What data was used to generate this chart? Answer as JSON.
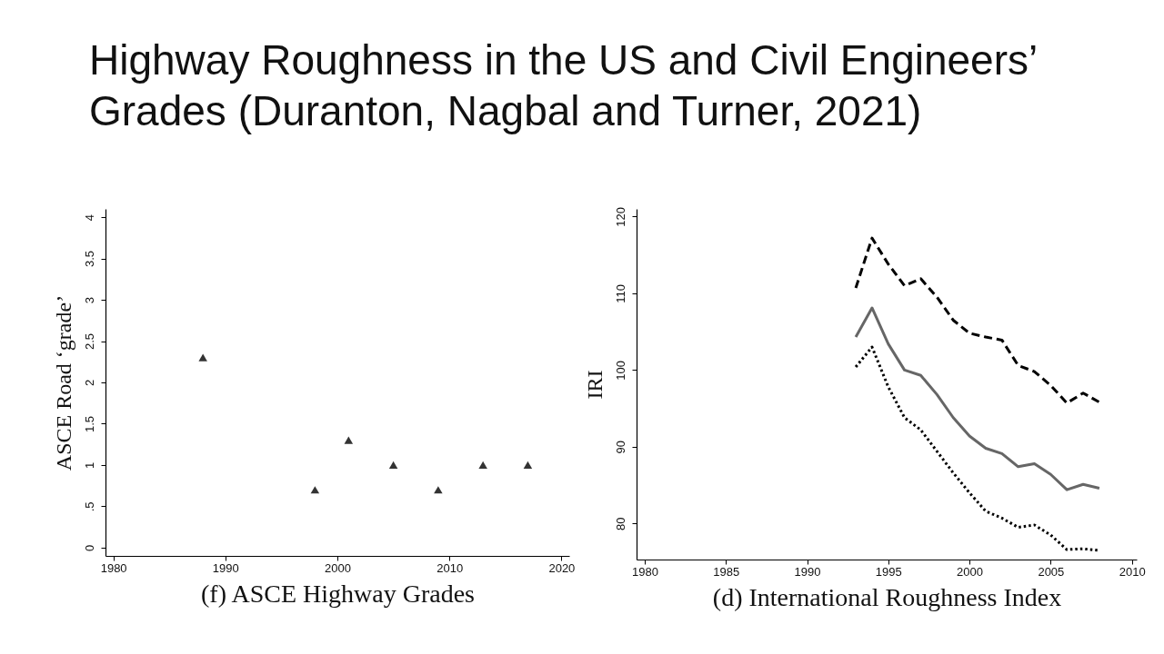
{
  "chart_data": [
    {
      "type": "scatter",
      "title": "Highway Roughness in the US and Civil Engineers’ Grades (Duranton, Nagbal and Turner, 2021)",
      "xlabel": "(f) ASCE Highway Grades",
      "ylabel": "ASCE Road ‘grade’",
      "marker": "triangle",
      "x": [
        1988,
        1998,
        2001,
        2005,
        2009,
        2013,
        2017
      ],
      "series": [
        {
          "color": "#333333",
          "values": [
            2.3,
            0.7,
            1.3,
            1.0,
            0.7,
            1.0,
            1.0
          ]
        }
      ],
      "xlim": [
        1979.3,
        2020.7
      ],
      "xticks": [
        1980,
        1990,
        2000,
        2010,
        2020
      ],
      "ylim": [
        -0.1,
        4.1
      ],
      "yticks": [
        0,
        {
          "value": 0.5,
          "label": ".5"
        },
        1,
        1.5,
        2,
        2.5,
        3,
        3.5,
        4
      ]
    },
    {
      "type": "line",
      "xlabel": "(d) International Roughness Index",
      "ylabel": "IRI",
      "x": [
        1993,
        1994,
        1995,
        1996,
        1997,
        1998,
        1999,
        2000,
        2001,
        2002,
        2003,
        2004,
        2005,
        2006,
        2007,
        2008
      ],
      "series": [
        {
          "color": "#000000",
          "line_style": "dashed",
          "values": [
            110.7,
            117.2,
            113.8,
            111,
            111.9,
            109.5,
            106.5,
            104.8,
            104.3,
            103.9,
            100.6,
            99.8,
            98,
            95.7,
            97,
            95.8
          ]
        },
        {
          "color": "#666666",
          "line_style": "solid",
          "values": [
            104.3,
            108.1,
            103.4,
            100,
            99.3,
            96.8,
            93.8,
            91.4,
            89.8,
            89.1,
            87.4,
            87.8,
            86.4,
            84.4,
            85.1,
            84.6
          ]
        },
        {
          "color": "#000000",
          "line_style": "dotted",
          "values": [
            100.4,
            103,
            97.8,
            93.8,
            92.2,
            89.4,
            86.6,
            84,
            81.6,
            80.7,
            79.5,
            79.8,
            78.5,
            76.6,
            76.7,
            76.5
          ]
        }
      ],
      "xlim": [
        1979.5,
        2010.3
      ],
      "xticks": [
        1980,
        1985,
        1990,
        1995,
        2000,
        2005,
        2010
      ],
      "ylim": [
        75.3,
        121
      ],
      "yticks": [
        80,
        90,
        100,
        110,
        120
      ]
    }
  ]
}
